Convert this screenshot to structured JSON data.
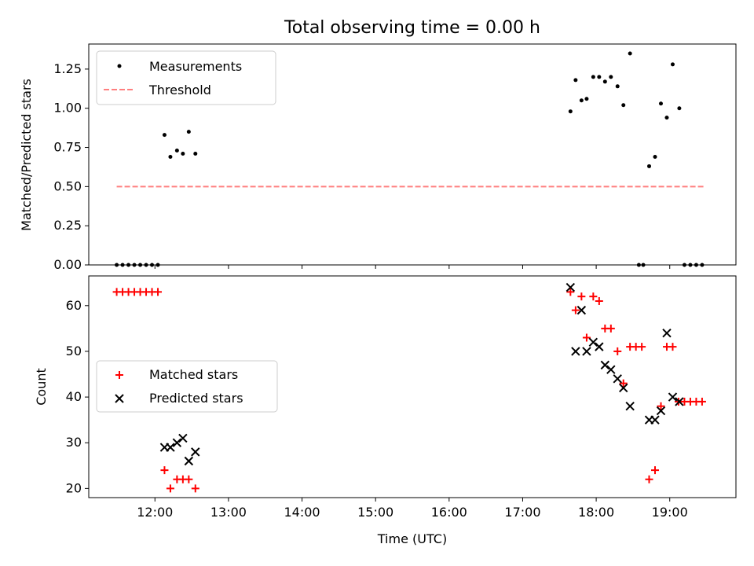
{
  "chart_data": [
    {
      "type": "scatter",
      "title": "Total observing time = 0.00 h",
      "ylabel": "Matched/Predicted stars",
      "xlabel": "",
      "xlim": [
        11.1,
        19.9
      ],
      "ylim": [
        0.0,
        1.41
      ],
      "yticks": [
        0.0,
        0.25,
        0.5,
        0.75,
        1.0,
        1.25
      ],
      "ytick_labels": [
        "0.00",
        "0.25",
        "0.50",
        "0.75",
        "1.00",
        "1.25"
      ],
      "legend": {
        "position": "top-left",
        "entries": [
          "Measurements",
          "Threshold"
        ]
      },
      "series": [
        {
          "name": "Measurements",
          "marker": "dot",
          "color": "#000000",
          "x": [
            11.48,
            11.56,
            11.64,
            11.72,
            11.8,
            11.88,
            11.96,
            12.04,
            12.13,
            12.21,
            12.3,
            12.38,
            12.46,
            12.55,
            17.65,
            17.72,
            17.8,
            17.87,
            17.96,
            18.04,
            18.12,
            18.2,
            18.29,
            18.37,
            18.46,
            18.58,
            18.64,
            18.72,
            18.8,
            18.88,
            18.96,
            19.04,
            19.13,
            19.2,
            19.28,
            19.36,
            19.44
          ],
          "y": [
            0,
            0,
            0,
            0,
            0,
            0,
            0,
            0,
            0.83,
            0.69,
            0.73,
            0.71,
            0.85,
            0.71,
            0.98,
            1.18,
            1.05,
            1.06,
            1.2,
            1.2,
            1.17,
            1.2,
            1.14,
            1.02,
            1.35,
            0,
            0,
            0.63,
            0.69,
            1.03,
            0.94,
            1.28,
            1.0,
            0,
            0,
            0,
            0
          ]
        },
        {
          "name": "Threshold",
          "style": "dashed",
          "color": "#ff7f7f",
          "x": [
            11.48,
            19.48
          ],
          "y": [
            0.5,
            0.5
          ]
        }
      ]
    },
    {
      "type": "scatter",
      "title": "",
      "ylabel": "Count",
      "xlabel": "Time (UTC)",
      "xlim": [
        11.1,
        19.9
      ],
      "ylim": [
        18,
        66.5
      ],
      "yticks": [
        20,
        30,
        40,
        50,
        60
      ],
      "ytick_labels": [
        "20",
        "30",
        "40",
        "50",
        "60"
      ],
      "xticks": [
        12,
        13,
        14,
        15,
        16,
        17,
        18,
        19
      ],
      "xtick_labels": [
        "12:00",
        "13:00",
        "14:00",
        "15:00",
        "16:00",
        "17:00",
        "18:00",
        "19:00"
      ],
      "legend": {
        "position": "center-left",
        "entries": [
          "Matched stars",
          "Predicted stars"
        ]
      },
      "series": [
        {
          "name": "Matched stars",
          "marker": "plus",
          "color": "#ff0000",
          "x": [
            11.48,
            11.56,
            11.64,
            11.72,
            11.8,
            11.88,
            11.96,
            12.04,
            12.13,
            12.21,
            12.3,
            12.38,
            12.46,
            12.55,
            17.65,
            17.72,
            17.8,
            17.87,
            17.96,
            18.04,
            18.12,
            18.2,
            18.29,
            18.37,
            18.46,
            18.54,
            18.62,
            18.72,
            18.8,
            18.88,
            18.96,
            19.04,
            19.12,
            19.2,
            19.28,
            19.36,
            19.44
          ],
          "y": [
            63,
            63,
            63,
            63,
            63,
            63,
            63,
            63,
            24,
            20,
            22,
            22,
            22,
            20,
            63,
            59,
            62,
            53,
            62,
            61,
            55,
            55,
            50,
            43,
            51,
            51,
            51,
            22,
            24,
            38,
            51,
            51,
            39,
            39,
            39,
            39,
            39
          ]
        },
        {
          "name": "Predicted stars",
          "marker": "x",
          "color": "#000000",
          "x": [
            12.13,
            12.21,
            12.3,
            12.38,
            12.46,
            12.55,
            17.65,
            17.72,
            17.8,
            17.87,
            17.96,
            18.04,
            18.12,
            18.2,
            18.29,
            18.37,
            18.46,
            18.72,
            18.8,
            18.88,
            18.96,
            19.04,
            19.13
          ],
          "y": [
            29,
            29,
            30,
            31,
            26,
            28,
            64,
            50,
            59,
            50,
            52,
            51,
            47,
            46,
            44,
            42,
            38,
            35,
            35,
            37,
            54,
            40,
            39
          ]
        }
      ]
    }
  ]
}
